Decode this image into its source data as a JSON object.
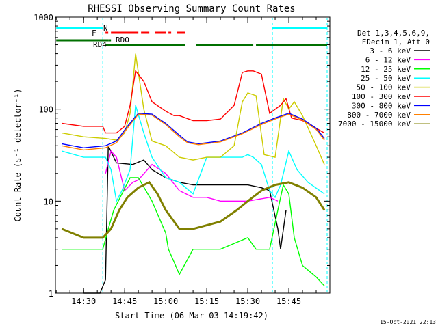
{
  "chart_data": {
    "type": "line",
    "title": "RHESSI Observing Summary Count Rates",
    "xlabel": "Start Time (06-Mar-03 14:19:42)",
    "ylabel": "Count Rate (s⁻¹ detector⁻¹)",
    "yscale": "log",
    "ylim": [
      1,
      1000
    ],
    "xlim": [
      "14:19:42",
      "16:00:00"
    ],
    "xticks": [
      "14:30",
      "14:45",
      "15:00",
      "15:15",
      "15:30",
      "15:45"
    ],
    "yticks": [
      "1",
      "10",
      "100",
      "1000"
    ],
    "grid": false,
    "legend_position": "right",
    "legend_header": [
      "Det 1,3,4,5,6,9,",
      "FDecim 1, Att 0"
    ],
    "series": [
      {
        "name": "3 - 6 keV",
        "color": "#000000",
        "x": [
          "14:30",
          "14:36",
          "14:38",
          "14:39",
          "14:42",
          "14:48",
          "14:52",
          "14:55",
          "15:00",
          "15:05",
          "15:10",
          "15:20",
          "15:30",
          "15:35",
          "15:38",
          "15:41",
          "15:42",
          "15:44"
        ],
        "y": [
          1,
          1,
          1.4,
          40,
          26,
          25,
          28,
          22,
          18,
          16,
          15,
          15,
          15,
          14,
          13,
          5,
          3,
          8
        ]
      },
      {
        "name": "6 - 12 keV",
        "color": "#ff00ff",
        "x": [
          "14:38",
          "14:40",
          "14:42",
          "14:45",
          "14:48",
          "14:50",
          "14:55",
          "15:00",
          "15:05",
          "15:10",
          "15:15",
          "15:20",
          "15:30",
          "15:38",
          "15:41"
        ],
        "y": [
          20,
          35,
          30,
          13,
          16,
          17,
          25,
          20,
          13,
          11,
          11,
          10,
          10,
          11,
          10
        ]
      },
      {
        "name": "12 - 25 keV",
        "color": "#00ff00",
        "x": [
          "14:22",
          "14:30",
          "14:37",
          "14:39",
          "14:41",
          "14:44",
          "14:47",
          "14:50",
          "14:55",
          "15:00",
          "15:01",
          "15:03",
          "15:05",
          "15:10",
          "15:20",
          "15:30",
          "15:33",
          "15:36",
          "15:38",
          "15:41",
          "15:43",
          "15:45",
          "15:47",
          "15:50",
          "15:55",
          "15:58"
        ],
        "y": [
          3,
          3,
          3,
          5,
          8,
          12,
          18,
          18,
          10,
          4.5,
          3,
          2.2,
          1.6,
          3,
          3,
          4,
          3,
          3,
          3,
          8,
          15,
          12,
          4,
          2,
          1.5,
          1.2
        ]
      },
      {
        "name": "25 - 50 keV",
        "color": "#00ffff",
        "x": [
          "14:22",
          "14:30",
          "14:38",
          "14:40",
          "14:42",
          "14:44",
          "14:47",
          "14:49",
          "14:52",
          "14:55",
          "15:00",
          "15:05",
          "15:10",
          "15:15",
          "15:20",
          "15:28",
          "15:30",
          "15:32",
          "15:35",
          "15:38",
          "15:40",
          "15:42",
          "15:45",
          "15:48",
          "15:52",
          "15:58"
        ],
        "y": [
          35,
          30,
          30,
          22,
          10,
          13,
          22,
          110,
          55,
          30,
          18,
          16,
          12,
          30,
          30,
          30,
          32,
          30,
          25,
          13,
          11,
          15,
          35,
          22,
          16,
          12
        ]
      },
      {
        "name": "50 - 100 keV",
        "color": "#cccc00",
        "x": [
          "14:22",
          "14:30",
          "14:38",
          "14:42",
          "14:45",
          "14:47",
          "14:49",
          "14:52",
          "14:55",
          "15:00",
          "15:05",
          "15:10",
          "15:15",
          "15:20",
          "15:25",
          "15:28",
          "15:30",
          "15:33",
          "15:36",
          "15:40",
          "15:43",
          "15:45",
          "15:47",
          "15:50",
          "15:55",
          "15:58"
        ],
        "y": [
          55,
          50,
          48,
          46,
          55,
          90,
          400,
          100,
          45,
          40,
          30,
          28,
          30,
          30,
          40,
          120,
          150,
          140,
          32,
          30,
          130,
          100,
          120,
          85,
          40,
          25
        ]
      },
      {
        "name": "100 - 300 keV",
        "color": "#ff0000",
        "x": [
          "14:22",
          "14:30",
          "14:37",
          "14:38",
          "14:42",
          "14:45",
          "14:47",
          "14:49",
          "14:52",
          "14:55",
          "15:00",
          "15:03",
          "15:05",
          "15:10",
          "15:15",
          "15:20",
          "15:25",
          "15:28",
          "15:30",
          "15:32",
          "15:35",
          "15:38",
          "15:42",
          "15:44",
          "15:46",
          "15:50",
          "15:55",
          "15:58"
        ],
        "y": [
          70,
          65,
          65,
          55,
          55,
          65,
          110,
          260,
          200,
          120,
          95,
          85,
          85,
          75,
          75,
          78,
          110,
          250,
          260,
          260,
          240,
          90,
          110,
          130,
          80,
          75,
          62,
          55
        ]
      },
      {
        "name": "300 - 800 keV",
        "color": "#0000ff",
        "x": [
          "14:22",
          "14:30",
          "14:38",
          "14:42",
          "14:46",
          "14:50",
          "14:55",
          "15:00",
          "15:05",
          "15:08",
          "15:12",
          "15:20",
          "15:28",
          "15:35",
          "15:40",
          "15:45",
          "15:50",
          "15:55",
          "15:58"
        ],
        "y": [
          42,
          38,
          40,
          45,
          65,
          90,
          88,
          70,
          52,
          44,
          42,
          45,
          55,
          70,
          80,
          90,
          78,
          62,
          48
        ]
      },
      {
        "name": "800 - 7000 keV",
        "color": "#ff8000",
        "x": [
          "14:22",
          "14:30",
          "14:38",
          "14:42",
          "14:46",
          "14:50",
          "14:55",
          "15:00",
          "15:05",
          "15:08",
          "15:12",
          "15:20",
          "15:28",
          "15:35",
          "15:40",
          "15:45",
          "15:50",
          "15:55",
          "15:58"
        ],
        "y": [
          40,
          36,
          38,
          43,
          62,
          88,
          86,
          68,
          50,
          43,
          41,
          44,
          54,
          68,
          78,
          88,
          76,
          60,
          46
        ]
      },
      {
        "name": "7000 - 15000 keV",
        "color": "#808000",
        "x": [
          "14:22",
          "14:30",
          "14:37",
          "14:40",
          "14:43",
          "14:46",
          "14:50",
          "14:54",
          "14:57",
          "15:00",
          "15:05",
          "15:10",
          "15:20",
          "15:26",
          "15:30",
          "15:35",
          "15:40",
          "15:45",
          "15:50",
          "15:55",
          "15:58"
        ],
        "y": [
          5,
          4,
          4,
          5,
          8,
          11,
          14,
          16,
          12,
          8,
          5,
          5,
          6,
          8,
          10,
          13,
          15,
          16,
          14,
          11,
          8
        ]
      }
    ]
  },
  "flags": {
    "N_label": "N",
    "F_label": "F",
    "RDO_label": "RDO",
    "RD4_label": "RD4"
  },
  "timestamp": "15-Oct-2021 22:13"
}
